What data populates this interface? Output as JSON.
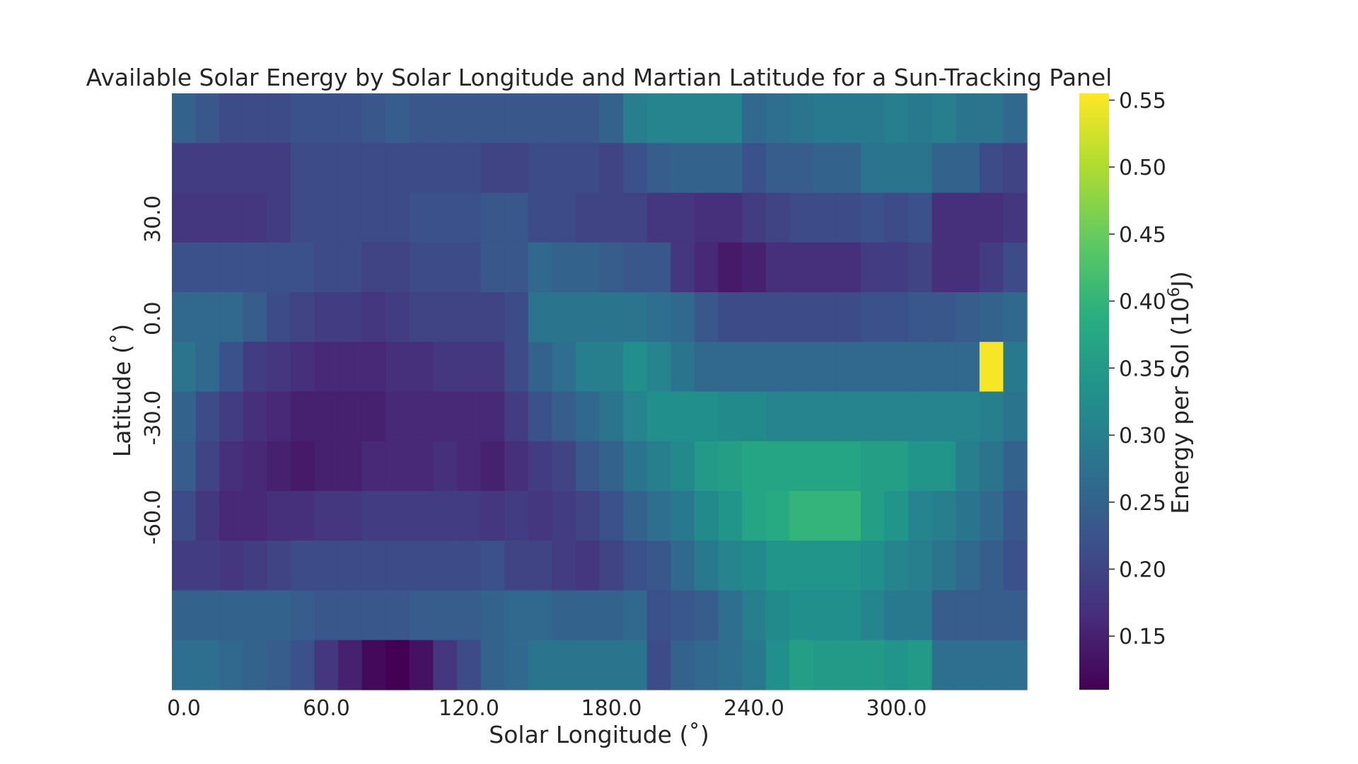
{
  "chart_data": {
    "type": "heatmap",
    "title": "Available Solar Energy by Solar Longitude and Martian Latitude for a Sun-Tracking Panel",
    "xlabel": "Solar Longitude (˚)",
    "ylabel": "Latitude (˚)",
    "colorbar_label_main": "Energy per Sol (10",
    "colorbar_label_exp": "6",
    "colorbar_label_unit": "J)",
    "colormap": "viridis",
    "colorbar_range": [
      0.11,
      0.555
    ],
    "colorbar_ticks": [
      "0.15",
      "0.20",
      "0.25",
      "0.30",
      "0.35",
      "0.40",
      "0.45",
      "0.50",
      "0.55"
    ],
    "x_tick_labels": [
      "0.0",
      "60.0",
      "120.0",
      "180.0",
      "240.0",
      "300.0"
    ],
    "x_tick_values": [
      0,
      60,
      120,
      180,
      240,
      300
    ],
    "y_tick_labels": [
      "30.0",
      "0.0",
      "-30.0",
      "-60.0"
    ],
    "y_tick_values": [
      30,
      0,
      -30,
      -60
    ],
    "x_bin_width_deg": 10,
    "y_bin_width_deg": 15,
    "x_bin_starts": [
      0,
      10,
      20,
      30,
      40,
      50,
      60,
      70,
      80,
      90,
      100,
      110,
      120,
      130,
      140,
      150,
      160,
      170,
      180,
      190,
      200,
      210,
      220,
      230,
      240,
      250,
      260,
      270,
      280,
      290,
      300,
      310,
      320,
      330,
      340,
      350
    ],
    "y_bin_starts": [
      60,
      45,
      30,
      15,
      0,
      -15,
      -30,
      -45,
      -60,
      -75,
      -90,
      -105
    ],
    "values": [
      [
        0.25,
        0.23,
        0.21,
        0.21,
        0.21,
        0.22,
        0.22,
        0.22,
        0.23,
        0.24,
        0.23,
        0.23,
        0.23,
        0.23,
        0.23,
        0.23,
        0.23,
        0.23,
        0.25,
        0.3,
        0.31,
        0.31,
        0.31,
        0.31,
        0.26,
        0.27,
        0.28,
        0.29,
        0.29,
        0.29,
        0.3,
        0.29,
        0.3,
        0.28,
        0.28,
        0.26
      ],
      [
        0.19,
        0.19,
        0.19,
        0.19,
        0.19,
        0.21,
        0.21,
        0.21,
        0.21,
        0.21,
        0.21,
        0.21,
        0.21,
        0.2,
        0.2,
        0.21,
        0.21,
        0.21,
        0.2,
        0.22,
        0.24,
        0.25,
        0.25,
        0.25,
        0.22,
        0.24,
        0.24,
        0.25,
        0.25,
        0.28,
        0.28,
        0.28,
        0.25,
        0.25,
        0.21,
        0.2
      ],
      [
        0.18,
        0.18,
        0.18,
        0.18,
        0.19,
        0.21,
        0.21,
        0.21,
        0.21,
        0.21,
        0.22,
        0.22,
        0.22,
        0.23,
        0.23,
        0.21,
        0.21,
        0.2,
        0.2,
        0.2,
        0.18,
        0.18,
        0.17,
        0.17,
        0.19,
        0.2,
        0.21,
        0.21,
        0.21,
        0.22,
        0.21,
        0.22,
        0.17,
        0.17,
        0.17,
        0.18
      ],
      [
        0.22,
        0.22,
        0.22,
        0.22,
        0.22,
        0.22,
        0.21,
        0.21,
        0.2,
        0.2,
        0.21,
        0.21,
        0.21,
        0.23,
        0.23,
        0.26,
        0.25,
        0.25,
        0.24,
        0.23,
        0.23,
        0.18,
        0.16,
        0.14,
        0.15,
        0.17,
        0.17,
        0.17,
        0.17,
        0.19,
        0.19,
        0.2,
        0.17,
        0.17,
        0.19,
        0.21
      ],
      [
        0.26,
        0.26,
        0.26,
        0.24,
        0.21,
        0.2,
        0.19,
        0.19,
        0.18,
        0.19,
        0.2,
        0.2,
        0.2,
        0.2,
        0.21,
        0.28,
        0.28,
        0.28,
        0.28,
        0.28,
        0.27,
        0.26,
        0.23,
        0.21,
        0.21,
        0.21,
        0.21,
        0.21,
        0.21,
        0.22,
        0.22,
        0.23,
        0.23,
        0.24,
        0.25,
        0.26
      ],
      [
        0.28,
        0.26,
        0.22,
        0.19,
        0.18,
        0.17,
        0.16,
        0.16,
        0.16,
        0.17,
        0.17,
        0.18,
        0.18,
        0.18,
        0.21,
        0.25,
        0.27,
        0.3,
        0.3,
        0.33,
        0.31,
        0.28,
        0.26,
        0.26,
        0.26,
        0.26,
        0.26,
        0.26,
        0.26,
        0.26,
        0.26,
        0.26,
        0.26,
        0.26,
        0.55,
        0.29
      ],
      [
        0.25,
        0.21,
        0.19,
        0.17,
        0.16,
        0.15,
        0.15,
        0.15,
        0.15,
        0.16,
        0.16,
        0.16,
        0.16,
        0.16,
        0.19,
        0.22,
        0.24,
        0.26,
        0.28,
        0.31,
        0.33,
        0.33,
        0.33,
        0.32,
        0.32,
        0.31,
        0.31,
        0.31,
        0.31,
        0.31,
        0.31,
        0.31,
        0.31,
        0.31,
        0.3,
        0.28
      ],
      [
        0.24,
        0.2,
        0.17,
        0.16,
        0.15,
        0.14,
        0.15,
        0.15,
        0.16,
        0.16,
        0.16,
        0.17,
        0.16,
        0.15,
        0.17,
        0.19,
        0.2,
        0.23,
        0.25,
        0.28,
        0.3,
        0.32,
        0.35,
        0.36,
        0.37,
        0.37,
        0.37,
        0.37,
        0.37,
        0.36,
        0.36,
        0.34,
        0.34,
        0.3,
        0.28,
        0.25
      ],
      [
        0.21,
        0.18,
        0.16,
        0.16,
        0.17,
        0.17,
        0.18,
        0.18,
        0.19,
        0.19,
        0.19,
        0.19,
        0.19,
        0.18,
        0.19,
        0.18,
        0.19,
        0.2,
        0.22,
        0.25,
        0.27,
        0.29,
        0.32,
        0.34,
        0.37,
        0.38,
        0.4,
        0.4,
        0.4,
        0.36,
        0.34,
        0.31,
        0.3,
        0.28,
        0.26,
        0.23
      ],
      [
        0.19,
        0.19,
        0.18,
        0.19,
        0.2,
        0.21,
        0.21,
        0.21,
        0.21,
        0.21,
        0.21,
        0.21,
        0.21,
        0.22,
        0.2,
        0.2,
        0.19,
        0.18,
        0.2,
        0.22,
        0.23,
        0.26,
        0.29,
        0.31,
        0.32,
        0.34,
        0.34,
        0.34,
        0.34,
        0.33,
        0.31,
        0.3,
        0.28,
        0.26,
        0.24,
        0.22
      ],
      [
        0.25,
        0.25,
        0.25,
        0.25,
        0.25,
        0.24,
        0.23,
        0.23,
        0.23,
        0.23,
        0.24,
        0.24,
        0.24,
        0.25,
        0.26,
        0.26,
        0.25,
        0.25,
        0.25,
        0.26,
        0.22,
        0.23,
        0.24,
        0.27,
        0.3,
        0.32,
        0.33,
        0.33,
        0.33,
        0.31,
        0.29,
        0.29,
        0.24,
        0.24,
        0.24,
        0.24
      ],
      [
        0.27,
        0.27,
        0.26,
        0.25,
        0.24,
        0.22,
        0.18,
        0.15,
        0.12,
        0.11,
        0.13,
        0.18,
        0.21,
        0.25,
        0.26,
        0.28,
        0.28,
        0.28,
        0.28,
        0.28,
        0.21,
        0.25,
        0.26,
        0.27,
        0.29,
        0.33,
        0.36,
        0.35,
        0.35,
        0.35,
        0.34,
        0.35,
        0.27,
        0.27,
        0.27,
        0.27
      ]
    ]
  }
}
